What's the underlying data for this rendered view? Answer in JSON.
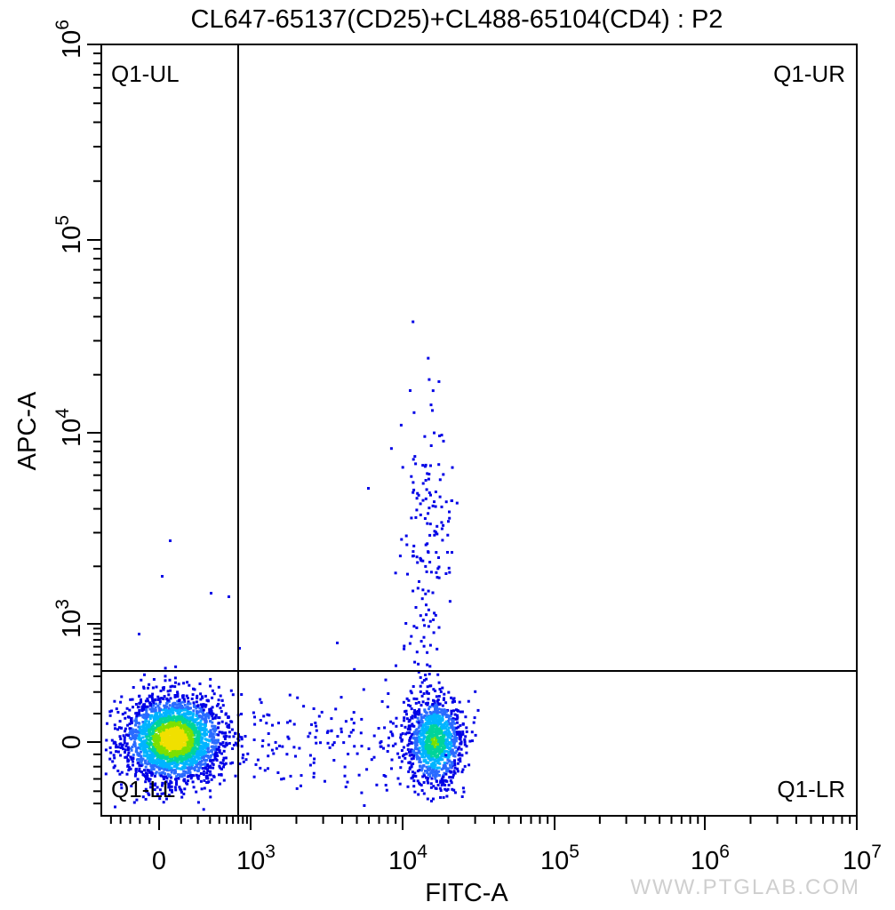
{
  "chart_data": {
    "type": "scatter",
    "title": "CL647-65137(CD25)+CL488-65104(CD4) : P2",
    "xlabel": "FITC-A",
    "ylabel": "APC-A",
    "x_scale": "biexponential",
    "y_scale": "biexponential",
    "x_ticks": [
      {
        "value": "0",
        "base": "0",
        "exp": ""
      },
      {
        "value": "1000",
        "base": "10",
        "exp": "3"
      },
      {
        "value": "10000",
        "base": "10",
        "exp": "4"
      },
      {
        "value": "100000",
        "base": "10",
        "exp": "5"
      },
      {
        "value": "1000000",
        "base": "10",
        "exp": "6"
      },
      {
        "value": "10000000",
        "base": "10",
        "exp": "7"
      }
    ],
    "y_ticks": [
      {
        "value": "0",
        "base": "0",
        "exp": ""
      },
      {
        "value": "1000",
        "base": "10",
        "exp": "3"
      },
      {
        "value": "10000",
        "base": "10",
        "exp": "4"
      },
      {
        "value": "100000",
        "base": "10",
        "exp": "5"
      },
      {
        "value": "1000000",
        "base": "10",
        "exp": "6"
      }
    ],
    "quadrant_gate": {
      "x": 800,
      "y": 560
    },
    "quadrant_labels": {
      "ul": "Q1-UL",
      "ur": "Q1-UR",
      "ll": "Q1-LL",
      "lr": "Q1-LR"
    },
    "populations": [
      {
        "name": "",
        "x_center": 0,
        "y_center": 0,
        "density": "high"
      },
      {
        "name": "",
        "x_center": 16000,
        "y_center": 0,
        "density": "medium"
      },
      {
        "name": "",
        "x_center": 14000,
        "y_center": 2500,
        "density": "low"
      }
    ],
    "grid": false
  },
  "watermark": "WWW.PTGLAB.COM",
  "colors": {
    "low_density": "#0000e6",
    "mid_density": "#00b4ff",
    "high_density": "#f0e000",
    "axes": "#000000",
    "watermark": "#d0d0d0"
  }
}
